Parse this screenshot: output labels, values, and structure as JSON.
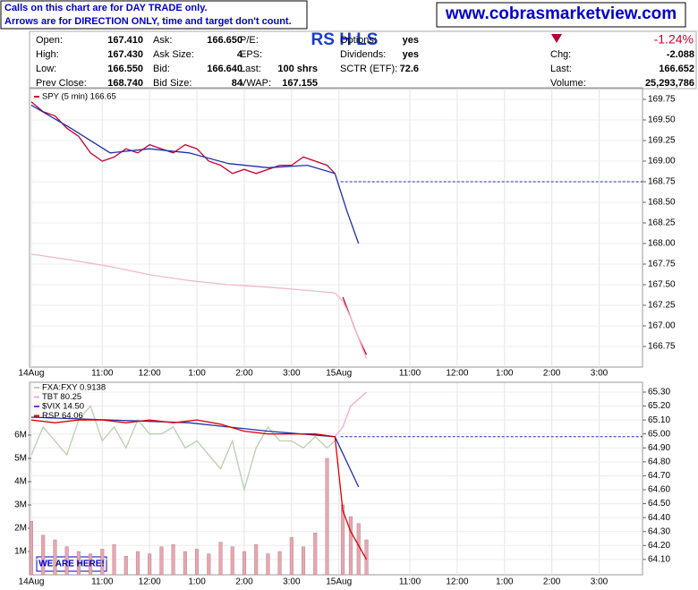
{
  "header": {
    "notice": [
      "Calls on this chart are for DAY TRADE only.",
      "Arrows are for DIRECTION ONLY, time and target don't count."
    ],
    "site": "www.cobrasmarketview.com",
    "signal": "RS H LS",
    "change_pct": "-1.24%",
    "quote": [
      [
        {
          "label": "Open:",
          "value": "167.410"
        },
        {
          "label": "High:",
          "value": "167.430"
        },
        {
          "label": "Low:",
          "value": "166.550"
        },
        {
          "label": "Prev Close:",
          "value": "168.740"
        }
      ],
      [
        {
          "label": "Ask:",
          "value": "166.650"
        },
        {
          "label": "Ask Size:",
          "value": "4"
        },
        {
          "label": "Bid:",
          "value": "166.640"
        },
        {
          "label": "Bid Size:",
          "value": "84"
        }
      ],
      [
        {
          "label": "P/E:"
        },
        {
          "label": "EPS:"
        },
        {
          "label": "Last:",
          "value": "100 shrs"
        },
        {
          "label": "VWAP:",
          "value": "167.155"
        }
      ],
      [
        {
          "label": "Options:",
          "value": "yes"
        },
        {
          "label": "Dividends:",
          "value": "yes"
        },
        {
          "label": "SCTR (ETF):",
          "value": "72.6"
        }
      ],
      [
        {
          "label": "Chg:",
          "value": "-2.088"
        },
        {
          "label": "Last:",
          "value": "166.652"
        },
        {
          "label": "Volume:",
          "value": "25,293,786"
        }
      ]
    ]
  },
  "chart_data": [
    {
      "type": "line",
      "grid": true,
      "xlim": [
        0,
        155
      ],
      "xticks": [
        {
          "value": 0,
          "label": "14Aug"
        },
        {
          "value": 18,
          "label": "11:00"
        },
        {
          "value": 30,
          "label": "12:00"
        },
        {
          "value": 42,
          "label": "1:00"
        },
        {
          "value": 54,
          "label": "2:00"
        },
        {
          "value": 66,
          "label": "3:00"
        },
        {
          "value": 78,
          "label": "15Aug"
        },
        {
          "value": 96,
          "label": "11:00"
        },
        {
          "value": 108,
          "label": "12:00"
        },
        {
          "value": 120,
          "label": "1:00"
        },
        {
          "value": 132,
          "label": "2:00"
        },
        {
          "value": 144,
          "label": "3:00"
        }
      ],
      "ylim": [
        166.5,
        169.88
      ],
      "yticks": [
        166.75,
        {
          "value": 167,
          "label": "167.00"
        },
        167.25,
        {
          "value": 167.5,
          "label": "167.50"
        },
        167.75,
        {
          "value": 168,
          "label": "168.00"
        },
        168.25,
        {
          "value": 168.5,
          "label": "168.50"
        },
        168.75,
        {
          "value": 169,
          "label": "169.00"
        },
        169.25,
        {
          "value": 169.5,
          "label": "169.50"
        },
        169.75
      ],
      "reference_line": 168.75,
      "series": [
        {
          "name": "SPY (5 min) 166.65",
          "color": "#cc0033",
          "x": [
            0,
            3,
            6,
            9,
            12,
            15,
            18,
            21,
            24,
            27,
            30,
            33,
            36,
            39,
            42,
            45,
            48,
            51,
            54,
            57,
            60,
            63,
            66,
            69,
            72,
            75,
            77,
            78,
            79,
            81,
            83,
            85
          ],
          "values": [
            169.72,
            169.6,
            169.55,
            169.4,
            169.3,
            169.1,
            169.0,
            169.05,
            169.15,
            169.1,
            169.2,
            169.15,
            169.1,
            169.2,
            169.15,
            169.0,
            168.95,
            168.85,
            168.9,
            168.85,
            168.9,
            168.95,
            168.95,
            169.05,
            169.0,
            168.95,
            168.85,
            null,
            167.35,
            167.1,
            166.85,
            166.65
          ]
        },
        {
          "color": "#1f2fa8",
          "x": [
            0,
            10,
            20,
            30,
            40,
            50,
            60,
            70,
            77,
            80,
            83
          ],
          "values": [
            169.68,
            169.4,
            169.1,
            169.15,
            169.1,
            168.97,
            168.92,
            168.95,
            168.85,
            168.4,
            168.0
          ]
        },
        {
          "color": "#f0b8c8",
          "x": [
            0,
            10,
            20,
            30,
            40,
            50,
            60,
            70,
            77,
            79,
            81,
            83,
            85
          ],
          "values": [
            167.87,
            167.8,
            167.72,
            167.62,
            167.55,
            167.5,
            167.47,
            167.43,
            167.4,
            167.3,
            167.1,
            166.85,
            166.6
          ]
        }
      ]
    },
    {
      "type": "line",
      "grid": true,
      "xlim": [
        0,
        155
      ],
      "xticks": [
        {
          "value": 0,
          "label": "14Aug"
        },
        {
          "value": 18,
          "label": "11:00"
        },
        {
          "value": 30,
          "label": "12:00"
        },
        {
          "value": 42,
          "label": "1:00"
        },
        {
          "value": 54,
          "label": "2:00"
        },
        {
          "value": 66,
          "label": "3:00"
        },
        {
          "value": 78,
          "label": "15Aug"
        },
        {
          "value": 96,
          "label": "11:00"
        },
        {
          "value": 108,
          "label": "12:00"
        },
        {
          "value": 120,
          "label": "1:00"
        },
        {
          "value": 132,
          "label": "2:00"
        },
        {
          "value": 144,
          "label": "3:00"
        }
      ],
      "ylim": [
        63.99,
        65.364
      ],
      "yticks": [
        {
          "value": 64.1,
          "label": "64.10"
        },
        {
          "value": 64.2,
          "label": "64.20"
        },
        {
          "value": 64.3,
          "label": "64.30"
        },
        {
          "value": 64.4,
          "label": "64.40"
        },
        {
          "value": 64.5,
          "label": "64.50"
        },
        {
          "value": 64.6,
          "label": "64.60"
        },
        {
          "value": 64.7,
          "label": "64.70"
        },
        {
          "value": 64.8,
          "label": "64.80"
        },
        {
          "value": 64.9,
          "label": "64.90"
        },
        {
          "value": 65,
          "label": "65.00"
        },
        {
          "value": 65.1,
          "label": "65.10"
        },
        {
          "value": 65.2,
          "label": "65.20"
        },
        {
          "value": 65.3,
          "label": "65.30"
        }
      ],
      "y2lim": [
        0,
        8230000
      ],
      "y2ticks": [
        {
          "value": 1000000,
          "label": "1M"
        },
        {
          "value": 2000000,
          "label": "2M"
        },
        {
          "value": 3000000,
          "label": "3M"
        },
        {
          "value": 4000000,
          "label": "4M"
        },
        {
          "value": 5000000,
          "label": "5M"
        },
        {
          "value": 6000000,
          "label": "6M"
        }
      ],
      "reference_line": 64.98,
      "annotation": "WE ARE HERE!",
      "series": [
        {
          "type": "bar",
          "axis": "y2",
          "color": "#e7a7b0",
          "x": [
            0,
            3,
            6,
            9,
            12,
            15,
            18,
            21,
            24,
            27,
            30,
            33,
            36,
            39,
            42,
            45,
            48,
            51,
            54,
            57,
            60,
            63,
            66,
            69,
            72,
            75,
            79,
            81,
            83,
            85
          ],
          "values": [
            2300000,
            1700000,
            1500000,
            1200000,
            1000000,
            900000,
            1100000,
            1300000,
            800000,
            1000000,
            900000,
            1200000,
            1300000,
            1000000,
            1100000,
            900000,
            1400000,
            1200000,
            1000000,
            1300000,
            900000,
            1000000,
            1600000,
            1200000,
            1800000,
            5000000,
            3000000,
            2500000,
            2200000,
            1500000
          ]
        },
        {
          "name": "FXA:FXY 0.9138",
          "color": "#b8cfb0",
          "x": [
            0,
            3,
            6,
            9,
            12,
            15,
            18,
            21,
            24,
            27,
            30,
            33,
            36,
            39,
            42,
            45,
            48,
            51,
            54,
            57,
            60,
            63,
            66,
            69,
            72,
            75,
            77
          ],
          "values": [
            64.85,
            65.05,
            64.95,
            64.85,
            65.1,
            65.2,
            64.95,
            65.05,
            64.9,
            65.1,
            65.0,
            65.0,
            65.05,
            64.9,
            64.95,
            64.85,
            64.75,
            64.95,
            64.6,
            64.9,
            65.05,
            64.95,
            64.95,
            64.9,
            64.98,
            64.9,
            64.95
          ]
        },
        {
          "name": "TBT 80.25",
          "color": "#f4a8d8",
          "x": [
            77,
            79,
            81,
            83,
            85
          ],
          "values": [
            64.98,
            65.05,
            65.2,
            65.25,
            65.3
          ]
        },
        {
          "name": "$VIX 14.50",
          "color": "#7a2fd0"
        },
        {
          "color": "#1f2fa8",
          "x": [
            0,
            20,
            40,
            60,
            77,
            83
          ],
          "values": [
            65.12,
            65.1,
            65.08,
            65.02,
            64.98,
            64.62
          ]
        },
        {
          "name": "RSP 64.06",
          "color": "#dd0000",
          "x": [
            0,
            6,
            12,
            18,
            24,
            30,
            36,
            42,
            48,
            54,
            60,
            66,
            72,
            77,
            79,
            81,
            83,
            85
          ],
          "values": [
            65.1,
            65.08,
            65.1,
            65.1,
            65.08,
            65.1,
            65.08,
            65.1,
            65.07,
            65.02,
            65.0,
            65.0,
            65.0,
            64.98,
            64.45,
            64.3,
            64.2,
            64.1
          ]
        }
      ]
    }
  ]
}
